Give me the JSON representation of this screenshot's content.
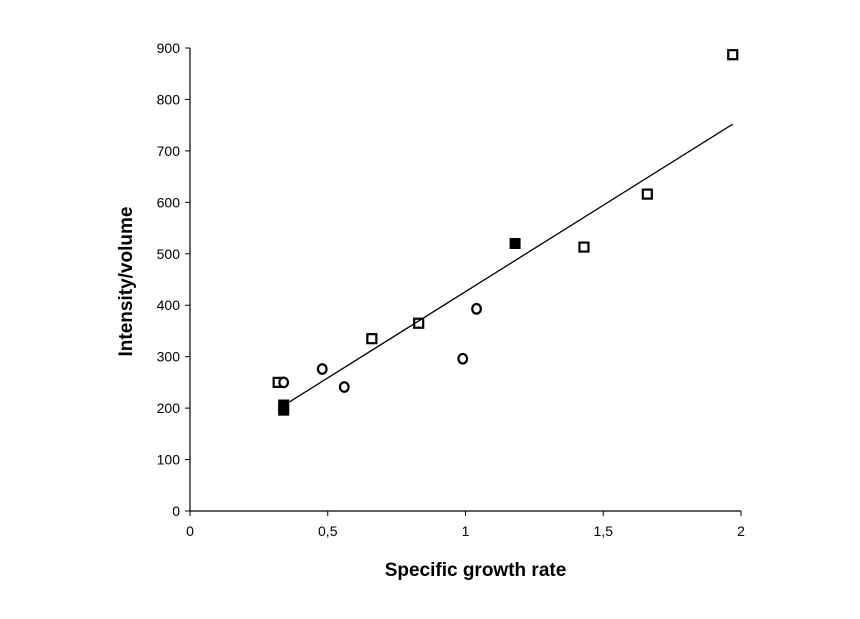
{
  "colors": {
    "background": "#ffffff",
    "ink": "#000000"
  },
  "chart_data": {
    "type": "scatter",
    "title": "",
    "xlabel": "Specific growth rate",
    "ylabel": "Intensity/volume",
    "xlim": [
      0,
      2
    ],
    "ylim": [
      0,
      900
    ],
    "xticks": [
      0,
      0.5,
      1,
      1.5,
      2
    ],
    "xtick_labels": [
      "0",
      "0,5",
      "1",
      "1,5",
      "2"
    ],
    "yticks": [
      0,
      100,
      200,
      300,
      400,
      500,
      600,
      700,
      800,
      900
    ],
    "ytick_labels": [
      "0",
      "100",
      "200",
      "300",
      "400",
      "500",
      "600",
      "700",
      "800",
      "900"
    ],
    "grid": false,
    "series": [
      {
        "marker": "open-square",
        "points": [
          [
            0.32,
            250
          ],
          [
            0.66,
            335
          ],
          [
            0.83,
            365
          ],
          [
            1.43,
            513
          ],
          [
            1.66,
            616
          ],
          [
            1.97,
            887
          ]
        ]
      },
      {
        "marker": "open-circle",
        "points": [
          [
            0.34,
            250
          ],
          [
            0.48,
            276
          ],
          [
            0.56,
            241
          ],
          [
            0.99,
            296
          ],
          [
            1.04,
            393
          ]
        ]
      },
      {
        "marker": "filled-square",
        "points": [
          [
            0.34,
            196
          ],
          [
            0.34,
            206
          ],
          [
            1.18,
            520
          ]
        ]
      }
    ],
    "trendline": {
      "x": [
        0.34,
        1.97
      ],
      "y": [
        205,
        752
      ]
    }
  }
}
